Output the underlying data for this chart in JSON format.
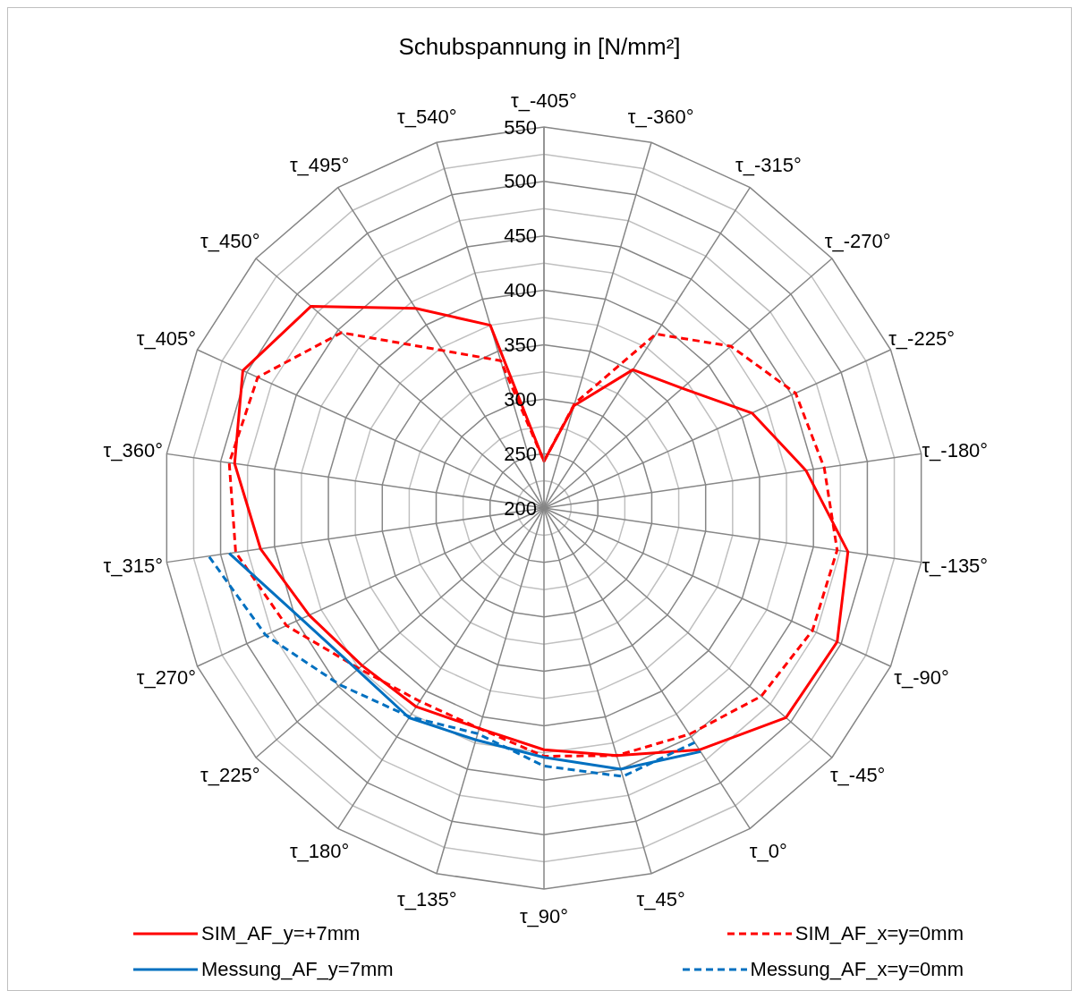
{
  "chart_data": {
    "type": "radar",
    "title": "Schubspannung in [N/mm²]",
    "categories": [
      "τ_-405°",
      "τ_-360°",
      "τ_-315°",
      "τ_-270°",
      "τ_-225°",
      "τ_-180°",
      "τ_-135°",
      "τ_-90°",
      "τ_-45°",
      "τ_0°",
      "τ_45°",
      "τ_90°",
      "τ_135°",
      "τ_180°",
      "τ_225°",
      "τ_270°",
      "τ_315°",
      "τ_360°",
      "τ_405°",
      "τ_450°",
      "τ_495°",
      "τ_540°"
    ],
    "series": [
      {
        "name": "SIM_AF_y=+7mm",
        "color": "#ff0000",
        "line_style": "solid",
        "values": [
          243,
          298,
          351,
          368,
          410,
          443,
          482,
          496,
          494,
          464,
          437,
          422,
          411,
          417,
          421,
          437,
          463,
          487,
          504,
          483,
          418,
          375
        ]
      },
      {
        "name": "SIM_AF_x=y=0mm",
        "color": "#ff0000",
        "line_style": "dashed",
        "values": [
          243,
          300,
          390,
          427,
          454,
          460,
          472,
          471,
          464,
          447,
          437,
          428,
          411,
          411,
          425,
          460,
          486,
          492,
          489,
          446,
          372,
          341
        ]
      },
      {
        "name": "Messung_AF_y=7mm",
        "color": "#0070c0",
        "line_style": "solid",
        "values": [
          null,
          null,
          null,
          null,
          null,
          null,
          null,
          null,
          null,
          466,
          450,
          429,
          422,
          429,
          427,
          445,
          492,
          null,
          null,
          null,
          null,
          null
        ]
      },
      {
        "name": "Messung_AF_x=y=0mm",
        "color": "#0070c0",
        "line_style": "dashed",
        "values": [
          null,
          null,
          null,
          null,
          null,
          null,
          null,
          null,
          null,
          456,
          457,
          437,
          416,
          428,
          448,
          481,
          511,
          null,
          null,
          null,
          null,
          null
        ]
      }
    ],
    "ylim": [
      200,
      550
    ],
    "yticks": [
      200,
      250,
      300,
      350,
      400,
      450,
      500,
      550
    ],
    "grid": true,
    "legend": "bottom",
    "marker": "none"
  }
}
